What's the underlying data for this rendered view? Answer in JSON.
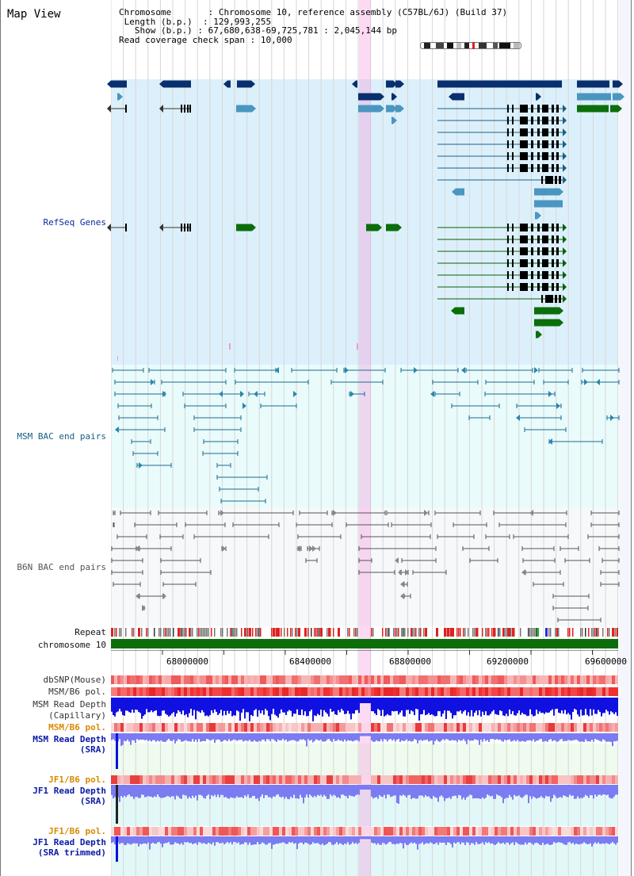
{
  "header": {
    "title": "Map View",
    "chromosome_label": "Chromosome",
    "chromosome_value": "Chromosome 10, reference assembly (C57BL/6J) (Build 37)",
    "length_label": "Length (b.p.)",
    "length_value": "129,993,255",
    "show_label": "Show (b.p.)",
    "show_value": "67,680,638-69,725,781 : 2,045,144 bp",
    "coverage_label": "Read coverage check span",
    "coverage_value": "10,000"
  },
  "tracks": {
    "refseq": "RefSeq Genes",
    "msm_bac": "MSM BAC end pairs",
    "b6n_bac": "B6N BAC end pairs",
    "repeat": "Repeat",
    "chromosome": "chromosome 10",
    "dbsnp": "dbSNP(Mouse)",
    "msm_b6_pol": "MSM/B6 pol.",
    "msm_read_depth_cap": "MSM Read Depth",
    "msm_read_depth_cap_sub": "(Capillary)",
    "msm_b6_pol_2": "MSM/B6 pol.",
    "msm_read_depth_sra": "MSM Read Depth",
    "msm_read_depth_sra_sub": "(SRA)",
    "jf1_b6_pol": "JF1/B6 pol.",
    "jf1_read_depth_sra": "JF1 Read Depth",
    "jf1_read_depth_sra_sub": "(SRA)",
    "jf1_b6_pol_2": "JF1/B6 pol.",
    "jf1_read_depth_trim": "JF1 Read Depth",
    "jf1_read_depth_trim_sub": "(SRA trimmed)"
  },
  "ruler": {
    "ticks": [
      "68000000",
      "68400000",
      "68800000",
      "69200000",
      "69600000"
    ]
  },
  "colors": {
    "refseq_dark": "#0a2f6e",
    "refseq_light": "#4a96c0",
    "refseq_green": "#0b6e0b",
    "msm_line": "#1a6b8e",
    "b6n_line": "#555555",
    "snp_red": "#f04848",
    "depth_blue": "#1010e0",
    "depth_light": "#7b7bf2",
    "highlight": "#f596dc"
  }
}
